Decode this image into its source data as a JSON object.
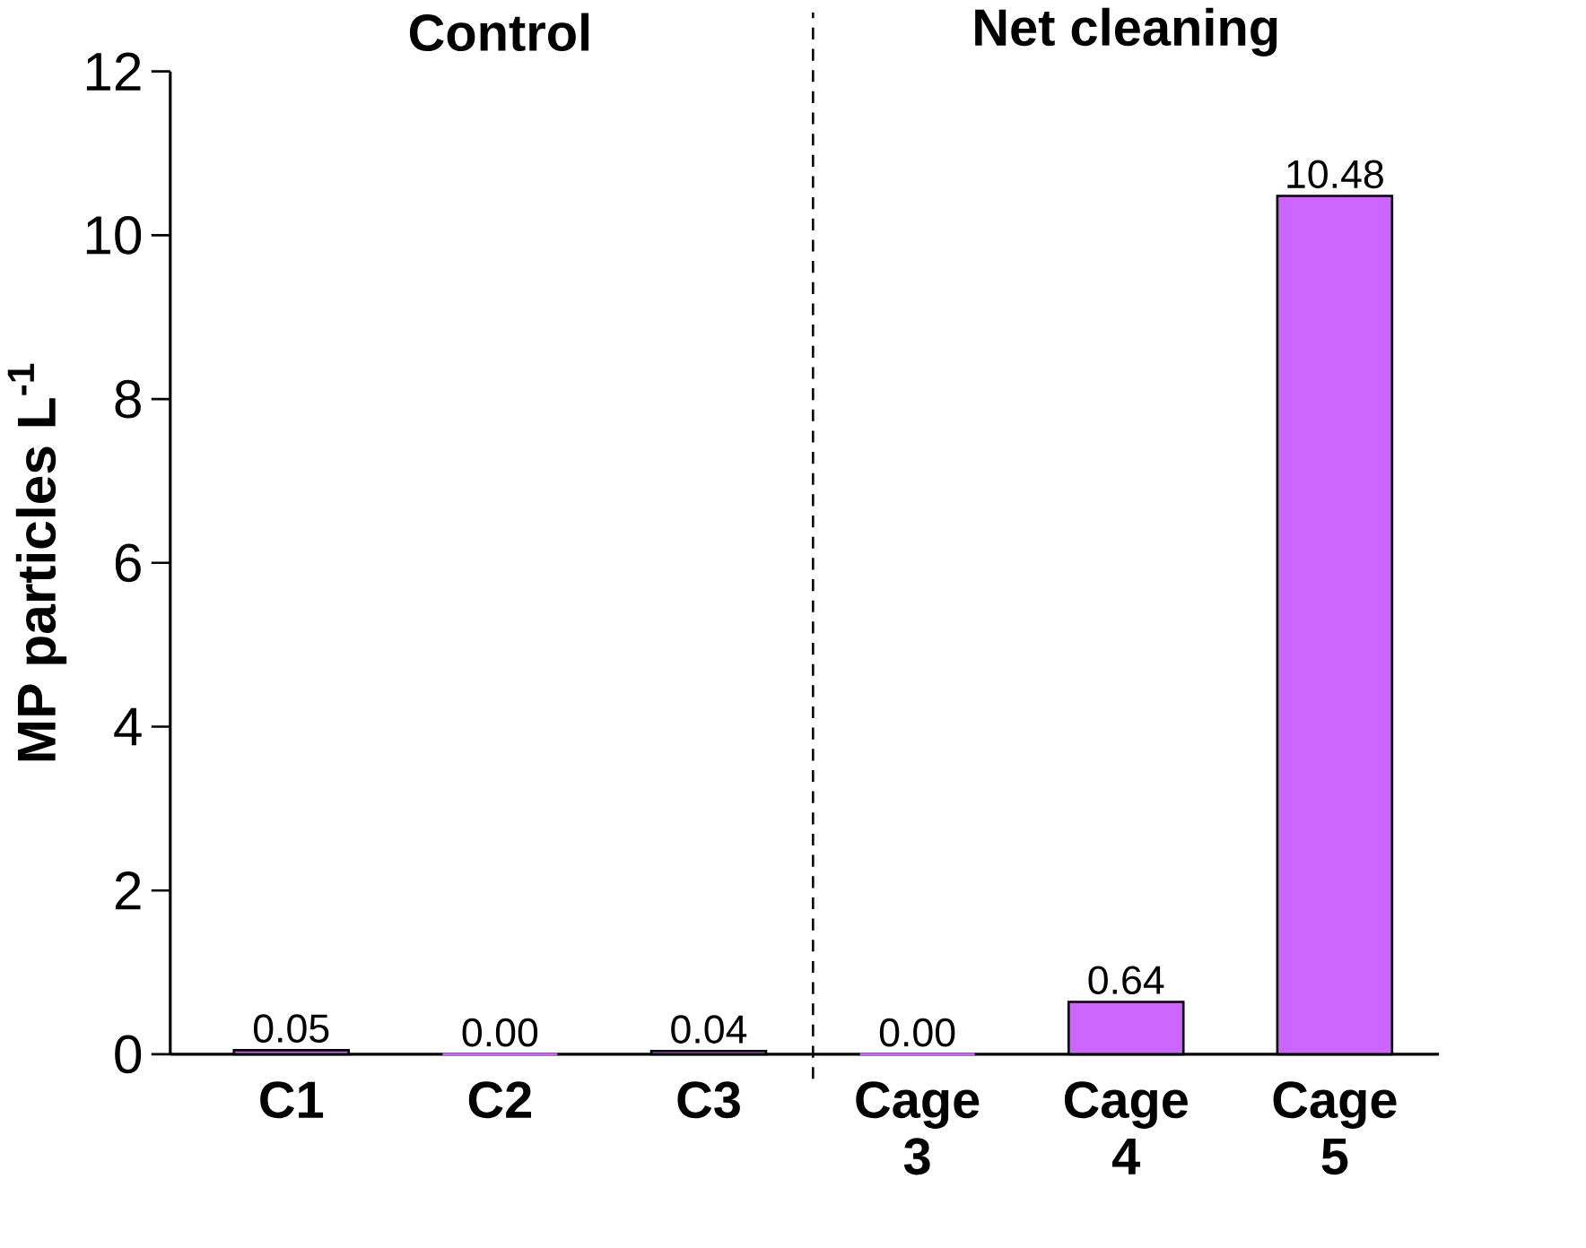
{
  "chart_data": {
    "type": "bar",
    "ylabel": "MP particles L$^{-1}$",
    "categories": [
      "C1",
      "C2",
      "C3",
      "Cage 3",
      "Cage 4",
      "Cage 5"
    ],
    "values": [
      0.05,
      0,
      0.04,
      0,
      0.64,
      10.48
    ],
    "value_labels": [
      "0.05",
      "0.00",
      "0.04",
      "0.00",
      "0.64",
      "10.48"
    ],
    "color": "#cc66ff",
    "ylim": [
      0,
      12
    ],
    "yticks": [
      0,
      2,
      4,
      6,
      8,
      10,
      12
    ],
    "annotations": [
      "Control",
      "Net cleaning"
    ],
    "grid": false
  }
}
